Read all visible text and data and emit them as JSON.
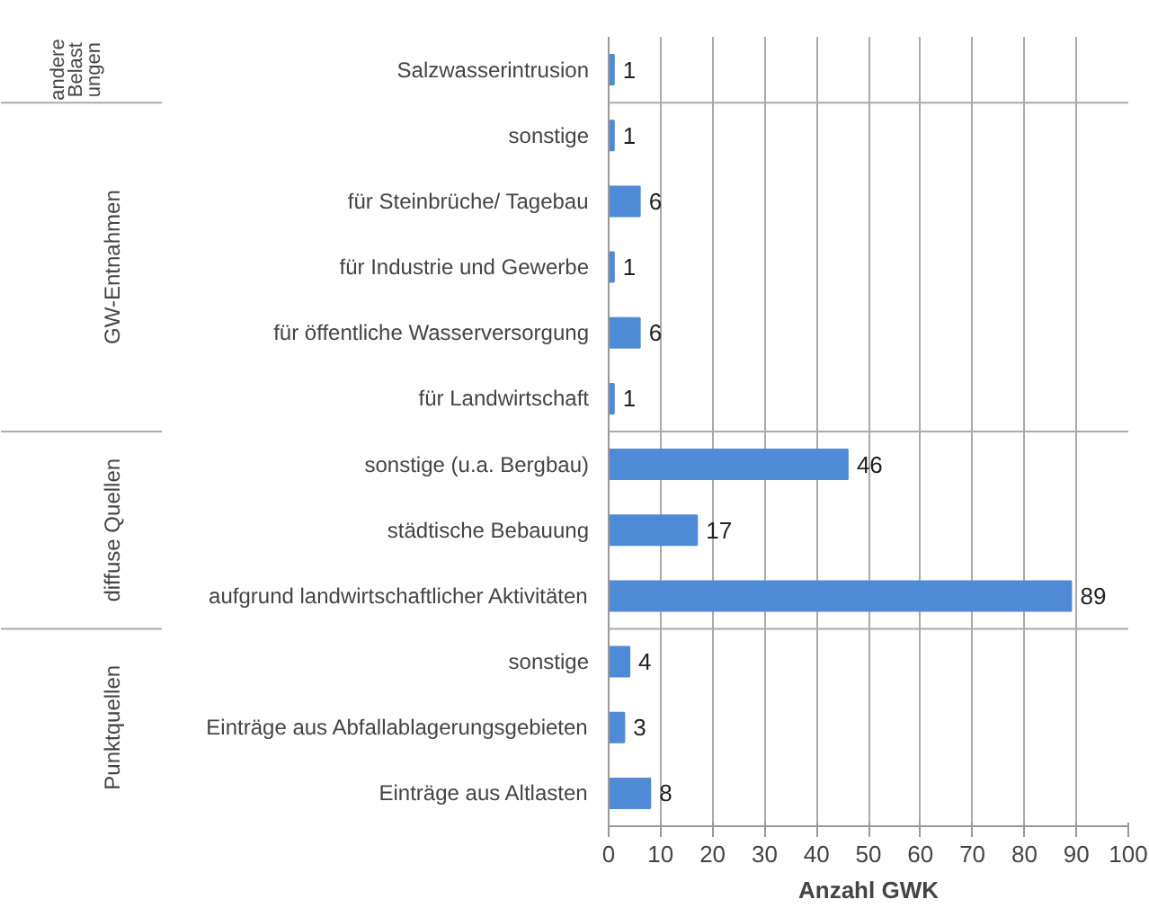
{
  "chart_data": {
    "type": "bar",
    "orientation": "horizontal",
    "xlabel": "Anzahl GWK",
    "categories": [
      "Salzwasserintrusion",
      "sonstige",
      "für Steinbrüche/ Tagebau",
      "für Industrie und Gewerbe",
      "für öffentliche Wasserversorgung",
      "für Landwirtschaft",
      "sonstige (u.a. Bergbau)",
      "städtische Bebauung",
      "aufgrund landwirtschaftlicher Aktivitäten",
      "sonstige",
      "Einträge aus Abfallablagerungsgebieten",
      "Einträge aus Altlasten"
    ],
    "values": [
      1,
      1,
      6,
      1,
      6,
      1,
      46,
      17,
      89,
      4,
      3,
      8
    ],
    "color": "#4f8ad6",
    "xlim": [
      0,
      100
    ],
    "xticks": [
      0,
      10,
      20,
      30,
      40,
      50,
      60,
      70,
      80,
      90,
      100
    ],
    "grid": "x",
    "data_labels": true,
    "annotations": [
      "andere Belastungen",
      "GW-Entnahmen",
      "diffuse Quellen",
      "Punktquellen"
    ]
  }
}
